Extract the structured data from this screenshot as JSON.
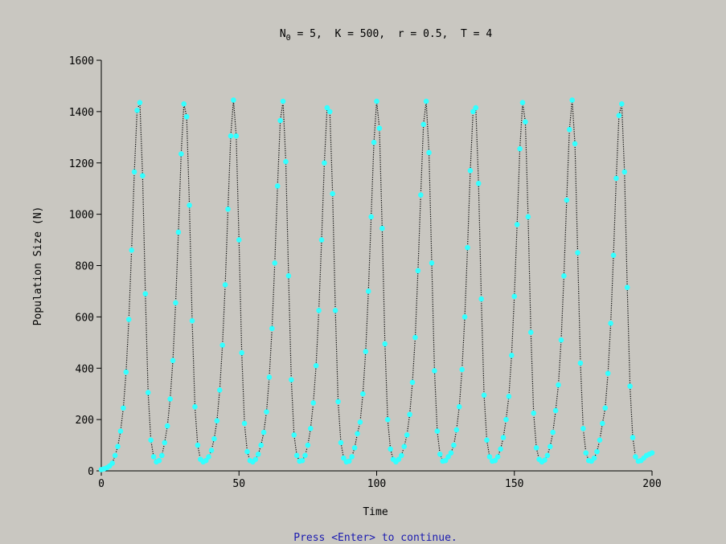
{
  "chart_data": {
    "type": "line",
    "title": {
      "symbol": "N",
      "subscript": "0",
      "rest": " = 5,  K = 500,  r = 0.5,  T = 4"
    },
    "x_label": "Time",
    "y_label": "Population Size (N)",
    "xlim": [
      0,
      200
    ],
    "xticks": [
      0,
      50,
      100,
      150,
      200
    ],
    "ylim": [
      0,
      1600
    ],
    "yticks": [
      0,
      200,
      400,
      600,
      800,
      1000,
      1200,
      1400,
      1600
    ],
    "x": [
      0,
      1,
      2,
      3,
      4,
      5,
      6,
      7,
      8,
      9,
      10,
      11,
      12,
      13,
      14,
      15,
      16,
      17,
      18,
      19,
      20,
      21,
      22,
      23,
      24,
      25,
      26,
      27,
      28,
      29,
      30,
      31,
      32,
      33,
      34,
      35,
      36,
      37,
      38,
      39,
      40,
      41,
      42,
      43,
      44,
      45,
      46,
      47,
      48,
      49,
      50,
      51,
      52,
      53,
      54,
      55,
      56,
      57,
      58,
      59,
      60,
      61,
      62,
      63,
      64,
      65,
      66,
      67,
      68,
      69,
      70,
      71,
      72,
      73,
      74,
      75,
      76,
      77,
      78,
      79,
      80,
      81,
      82,
      83,
      84,
      85,
      86,
      87,
      88,
      89,
      90,
      91,
      92,
      93,
      94,
      95,
      96,
      97,
      98,
      99,
      100,
      101,
      102,
      103,
      104,
      105,
      106,
      107,
      108,
      109,
      110,
      111,
      112,
      113,
      114,
      115,
      116,
      117,
      118,
      119,
      120,
      121,
      122,
      123,
      124,
      125,
      126,
      127,
      128,
      129,
      130,
      131,
      132,
      133,
      134,
      135,
      136,
      137,
      138,
      139,
      140,
      141,
      142,
      143,
      144,
      145,
      146,
      147,
      148,
      149,
      150,
      151,
      152,
      153,
      154,
      155,
      156,
      157,
      158,
      159,
      160,
      161,
      162,
      163,
      164,
      165,
      166,
      167,
      168,
      169,
      170,
      171,
      172,
      173,
      174,
      175,
      176,
      177,
      178,
      179,
      180,
      181,
      182,
      183,
      184,
      185,
      186,
      187,
      188,
      189,
      190,
      191,
      192,
      193,
      194,
      195,
      196,
      197,
      198,
      199,
      200
    ],
    "series": [
      {
        "color": "#33ffff",
        "line_color": "#000000",
        "values": [
          5,
          8,
          12,
          19,
          30,
          60,
          95,
          155,
          245,
          385,
          590,
          860,
          1165,
          1405,
          1435,
          1150,
          690,
          305,
          120,
          55,
          35,
          40,
          60,
          110,
          175,
          280,
          430,
          655,
          930,
          1235,
          1430,
          1380,
          1035,
          585,
          250,
          100,
          45,
          35,
          40,
          55,
          80,
          125,
          195,
          315,
          490,
          725,
          1020,
          1305,
          1445,
          1305,
          900,
          460,
          185,
          75,
          40,
          35,
          45,
          65,
          100,
          150,
          230,
          365,
          555,
          810,
          1110,
          1365,
          1440,
          1205,
          760,
          355,
          140,
          60,
          38,
          40,
          60,
          100,
          165,
          265,
          410,
          625,
          900,
          1200,
          1415,
          1400,
          1080,
          625,
          270,
          110,
          50,
          35,
          38,
          55,
          90,
          145,
          190,
          300,
          465,
          700,
          990,
          1280,
          1440,
          1335,
          945,
          495,
          200,
          85,
          45,
          35,
          45,
          60,
          95,
          140,
          220,
          345,
          520,
          780,
          1075,
          1350,
          1440,
          1240,
          810,
          390,
          155,
          65,
          38,
          40,
          55,
          70,
          100,
          160,
          250,
          395,
          600,
          870,
          1170,
          1400,
          1415,
          1120,
          670,
          295,
          120,
          55,
          38,
          40,
          55,
          85,
          130,
          200,
          290,
          450,
          680,
          960,
          1255,
          1435,
          1360,
          990,
          540,
          225,
          90,
          45,
          35,
          42,
          60,
          95,
          150,
          235,
          335,
          510,
          760,
          1055,
          1330,
          1445,
          1275,
          850,
          420,
          165,
          70,
          40,
          38,
          50,
          75,
          120,
          185,
          245,
          380,
          575,
          840,
          1140,
          1385,
          1430,
          1165,
          715,
          330,
          130,
          55,
          38,
          40,
          50,
          60,
          65,
          70
        ]
      }
    ]
  },
  "footer": "Press <Enter> to continue."
}
